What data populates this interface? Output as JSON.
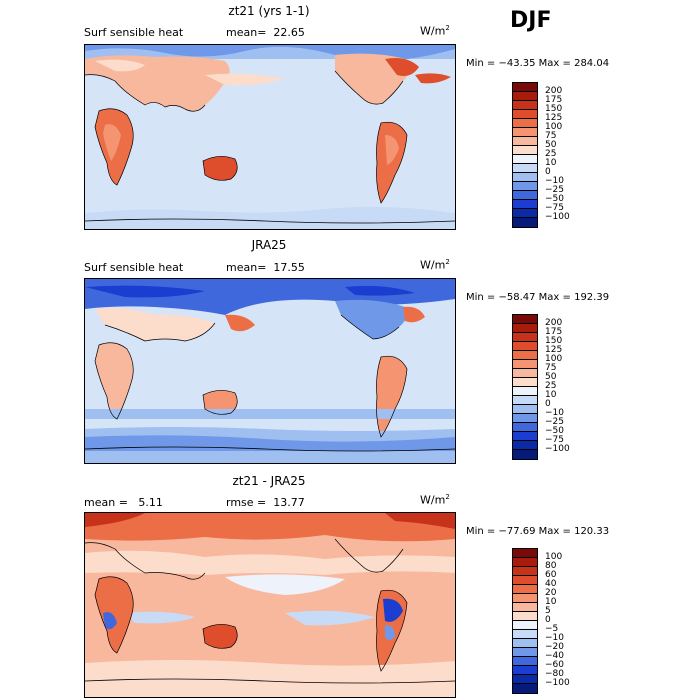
{
  "season": "DJF",
  "panels": [
    {
      "title": "zt21 (yrs 1-1)",
      "left_label": "Surf sensible heat",
      "stat1": "mean=  22.65",
      "stat2": "",
      "units": "W/m",
      "units_sup": "2",
      "minmax": "Min = −43.35  Max = 284.04",
      "colorbar_labels": [
        "200",
        "175",
        "150",
        "125",
        "100",
        "75",
        "50",
        "25",
        "10",
        "0",
        "−10",
        "−25",
        "−50",
        "−75",
        "−100"
      ],
      "colorbar_colors": [
        "#7a0a0a",
        "#a81c0c",
        "#c7321a",
        "#de4e2c",
        "#ec6e47",
        "#f49470",
        "#f8b89e",
        "#fcdccb",
        "#eef3fb",
        "#c7dbf6",
        "#9ebff0",
        "#6f98e8",
        "#3f68dd",
        "#1b3dd0",
        "#0b2aa8",
        "#061a7a"
      ],
      "map_type": "full"
    },
    {
      "title": "JRA25",
      "left_label": "Surf sensible heat",
      "stat1": "mean=  17.55",
      "stat2": "",
      "units": "W/m",
      "units_sup": "2",
      "minmax": "Min = −58.47  Max = 192.39",
      "colorbar_labels": [
        "200",
        "175",
        "150",
        "125",
        "100",
        "75",
        "50",
        "25",
        "10",
        "0",
        "−10",
        "−25",
        "−50",
        "−75",
        "−100"
      ],
      "colorbar_colors": [
        "#7a0a0a",
        "#a81c0c",
        "#c7321a",
        "#de4e2c",
        "#ec6e47",
        "#f49470",
        "#f8b89e",
        "#fcdccb",
        "#eef3fb",
        "#c7dbf6",
        "#9ebff0",
        "#6f98e8",
        "#3f68dd",
        "#1b3dd0",
        "#0b2aa8",
        "#061a7a"
      ],
      "map_type": "full"
    },
    {
      "title": "zt21 - JRA25",
      "left_label": "mean =   5.11",
      "stat1": "rmse =  13.77",
      "stat2": "",
      "units": "W/m",
      "units_sup": "2",
      "minmax": "Min = −77.69  Max = 120.33",
      "colorbar_labels": [
        "100",
        "80",
        "60",
        "40",
        "20",
        "10",
        "5",
        "0",
        "−5",
        "−10",
        "−20",
        "−40",
        "−60",
        "−80",
        "−100"
      ],
      "colorbar_colors": [
        "#7a0a0a",
        "#a81c0c",
        "#c7321a",
        "#de4e2c",
        "#ec6e47",
        "#f49470",
        "#f8b89e",
        "#fcdccb",
        "#eef3fb",
        "#c7dbf6",
        "#9ebff0",
        "#6f98e8",
        "#3f68dd",
        "#1b3dd0",
        "#0b2aa8",
        "#061a7a"
      ],
      "map_type": "diff"
    }
  ]
}
